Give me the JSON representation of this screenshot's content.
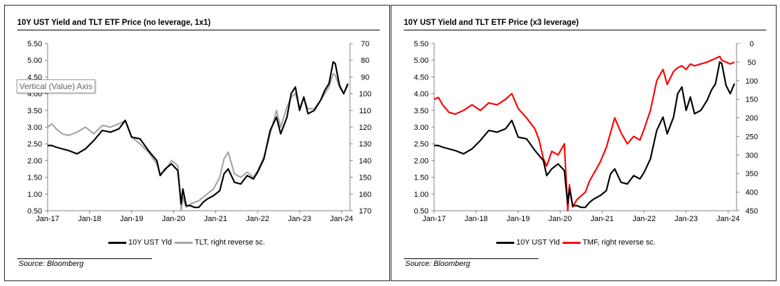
{
  "source": "Source: Bloomberg",
  "tooltip": "Vertical (Value) Axis",
  "colors": {
    "yield": "#000000",
    "tlt": "#a6a6a6",
    "tmf": "#ff0000"
  },
  "chart_data": [
    {
      "type": "line",
      "title": "10Y UST Yield and TLT ETF Price (no leverage, 1x1)",
      "x_ticks": [
        "Jan-17",
        "Jan-18",
        "Jan-19",
        "Jan-20",
        "Jan-21",
        "Jan-22",
        "Jan-23",
        "Jan-24"
      ],
      "x_range": [
        2017.0,
        2024.2
      ],
      "y_left": {
        "ticks": [
          "0.50",
          "1.00",
          "1.50",
          "2.00",
          "2.50",
          "3.00",
          "3.50",
          "4.00",
          "4.50",
          "5.00",
          "5.50"
        ],
        "lim": [
          0.5,
          5.5
        ]
      },
      "y_right": {
        "ticks": [
          "70",
          "80",
          "90",
          "100",
          "110",
          "120",
          "130",
          "140",
          "150",
          "160",
          "170"
        ],
        "lim": [
          70,
          170
        ],
        "reversed": true
      },
      "legend": [
        "10Y UST Yld",
        "TLT, right reverse sc."
      ],
      "series": [
        {
          "name": "10Y UST Yld",
          "axis": "left",
          "x": [
            2017.0,
            2017.1,
            2017.2,
            2017.35,
            2017.5,
            2017.7,
            2017.9,
            2018.1,
            2018.3,
            2018.5,
            2018.7,
            2018.85,
            2019.0,
            2019.2,
            2019.4,
            2019.6,
            2019.68,
            2019.8,
            2019.95,
            2020.1,
            2020.18,
            2020.22,
            2020.3,
            2020.4,
            2020.5,
            2020.6,
            2020.7,
            2020.8,
            2020.95,
            2021.1,
            2021.2,
            2021.3,
            2021.45,
            2021.6,
            2021.75,
            2021.9,
            2022.0,
            2022.15,
            2022.3,
            2022.45,
            2022.55,
            2022.7,
            2022.8,
            2022.9,
            2023.0,
            2023.1,
            2023.2,
            2023.35,
            2023.5,
            2023.6,
            2023.7,
            2023.8,
            2023.85,
            2023.95,
            2024.05,
            2024.15
          ],
          "y": [
            2.45,
            2.45,
            2.4,
            2.35,
            2.3,
            2.2,
            2.35,
            2.6,
            2.9,
            2.85,
            2.95,
            3.2,
            2.7,
            2.65,
            2.3,
            2.0,
            1.55,
            1.75,
            1.9,
            1.7,
            0.7,
            1.15,
            0.65,
            0.65,
            0.6,
            0.6,
            0.75,
            0.85,
            0.95,
            1.1,
            1.6,
            1.75,
            1.35,
            1.3,
            1.55,
            1.45,
            1.65,
            2.05,
            2.9,
            3.3,
            2.8,
            3.3,
            4.0,
            4.2,
            3.5,
            3.9,
            3.4,
            3.5,
            3.8,
            4.1,
            4.3,
            4.95,
            4.9,
            4.25,
            4.0,
            4.3
          ]
        },
        {
          "name": "TLT, right reverse sc.",
          "axis": "right",
          "x": [
            2017.0,
            2017.1,
            2017.2,
            2017.35,
            2017.5,
            2017.7,
            2017.9,
            2018.1,
            2018.3,
            2018.5,
            2018.7,
            2018.85,
            2019.0,
            2019.2,
            2019.4,
            2019.6,
            2019.68,
            2019.8,
            2019.95,
            2020.1,
            2020.18,
            2020.22,
            2020.3,
            2020.4,
            2020.5,
            2020.6,
            2020.7,
            2020.8,
            2020.95,
            2021.1,
            2021.2,
            2021.3,
            2021.45,
            2021.6,
            2021.75,
            2021.9,
            2022.0,
            2022.15,
            2022.3,
            2022.45,
            2022.55,
            2022.7,
            2022.8,
            2022.9,
            2023.0,
            2023.1,
            2023.2,
            2023.35,
            2023.5,
            2023.6,
            2023.7,
            2023.8,
            2023.85,
            2023.95,
            2024.05,
            2024.15
          ],
          "y": [
            120,
            118,
            121,
            124,
            125,
            123,
            120,
            124,
            119,
            120,
            118,
            116,
            126,
            130,
            135,
            142,
            148,
            146,
            140,
            143,
            170,
            162,
            168,
            166,
            165,
            164,
            162,
            160,
            157,
            150,
            139,
            135,
            148,
            150,
            147,
            150,
            146,
            138,
            124,
            110,
            120,
            108,
            102,
            100,
            108,
            103,
            109,
            109,
            104,
            100,
            96,
            88,
            89,
            96,
            100,
            95
          ]
        }
      ]
    },
    {
      "type": "line",
      "title": "10Y UST Yield and TLT ETF Price (x3 leverage)",
      "x_ticks": [
        "Jan-17",
        "Jan-18",
        "Jan-19",
        "Jan-20",
        "Jan-21",
        "Jan-22",
        "Jan-23",
        "Jan-24"
      ],
      "x_range": [
        2017.0,
        2024.2
      ],
      "y_left": {
        "ticks": [
          "0.50",
          "1.00",
          "1.50",
          "2.00",
          "2.50",
          "3.00",
          "3.50",
          "4.00",
          "4.50",
          "5.00",
          "5.50"
        ],
        "lim": [
          0.5,
          5.5
        ]
      },
      "y_right": {
        "ticks": [
          "0",
          "50",
          "100",
          "150",
          "200",
          "250",
          "300",
          "350",
          "400",
          "450"
        ],
        "lim": [
          0,
          450
        ],
        "reversed": true
      },
      "legend": [
        "10Y UST Yld",
        "TMF, right reverse sc."
      ],
      "series": [
        {
          "name": "10Y UST Yld",
          "axis": "left",
          "x": [
            2017.0,
            2017.1,
            2017.2,
            2017.35,
            2017.5,
            2017.7,
            2017.9,
            2018.1,
            2018.3,
            2018.5,
            2018.7,
            2018.85,
            2019.0,
            2019.2,
            2019.4,
            2019.6,
            2019.68,
            2019.8,
            2019.95,
            2020.1,
            2020.18,
            2020.22,
            2020.3,
            2020.4,
            2020.5,
            2020.6,
            2020.7,
            2020.8,
            2020.95,
            2021.1,
            2021.2,
            2021.3,
            2021.45,
            2021.6,
            2021.75,
            2021.9,
            2022.0,
            2022.15,
            2022.3,
            2022.45,
            2022.55,
            2022.7,
            2022.8,
            2022.9,
            2023.0,
            2023.1,
            2023.2,
            2023.35,
            2023.5,
            2023.6,
            2023.7,
            2023.8,
            2023.85,
            2023.95,
            2024.05,
            2024.15
          ],
          "y": [
            2.45,
            2.45,
            2.4,
            2.35,
            2.3,
            2.2,
            2.35,
            2.6,
            2.9,
            2.85,
            2.95,
            3.2,
            2.7,
            2.65,
            2.3,
            2.0,
            1.55,
            1.75,
            1.9,
            1.7,
            0.7,
            1.15,
            0.65,
            0.65,
            0.6,
            0.6,
            0.75,
            0.85,
            0.95,
            1.1,
            1.6,
            1.75,
            1.35,
            1.3,
            1.55,
            1.45,
            1.65,
            2.05,
            2.9,
            3.3,
            2.8,
            3.3,
            4.0,
            4.2,
            3.5,
            3.9,
            3.4,
            3.5,
            3.8,
            4.1,
            4.3,
            4.95,
            4.9,
            4.25,
            4.0,
            4.3
          ]
        },
        {
          "name": "TMF, right reverse sc.",
          "axis": "right",
          "x": [
            2017.0,
            2017.1,
            2017.2,
            2017.35,
            2017.5,
            2017.7,
            2017.9,
            2018.1,
            2018.3,
            2018.5,
            2018.7,
            2018.85,
            2019.0,
            2019.2,
            2019.4,
            2019.5,
            2019.6,
            2019.68,
            2019.8,
            2019.95,
            2020.1,
            2020.18,
            2020.22,
            2020.3,
            2020.4,
            2020.5,
            2020.6,
            2020.7,
            2020.8,
            2020.95,
            2021.1,
            2021.2,
            2021.3,
            2021.45,
            2021.6,
            2021.75,
            2021.9,
            2022.0,
            2022.15,
            2022.3,
            2022.45,
            2022.55,
            2022.7,
            2022.8,
            2022.9,
            2023.0,
            2023.1,
            2023.2,
            2023.35,
            2023.5,
            2023.6,
            2023.7,
            2023.8,
            2023.85,
            2023.95,
            2024.05,
            2024.15
          ],
          "y": [
            150,
            145,
            165,
            185,
            190,
            180,
            165,
            180,
            160,
            165,
            150,
            135,
            175,
            200,
            230,
            260,
            310,
            330,
            290,
            300,
            270,
            450,
            380,
            440,
            420,
            410,
            400,
            370,
            350,
            320,
            280,
            240,
            200,
            240,
            270,
            250,
            260,
            230,
            180,
            100,
            70,
            110,
            75,
            65,
            60,
            70,
            55,
            60,
            55,
            50,
            45,
            40,
            35,
            45,
            50,
            55,
            50
          ]
        }
      ]
    }
  ]
}
